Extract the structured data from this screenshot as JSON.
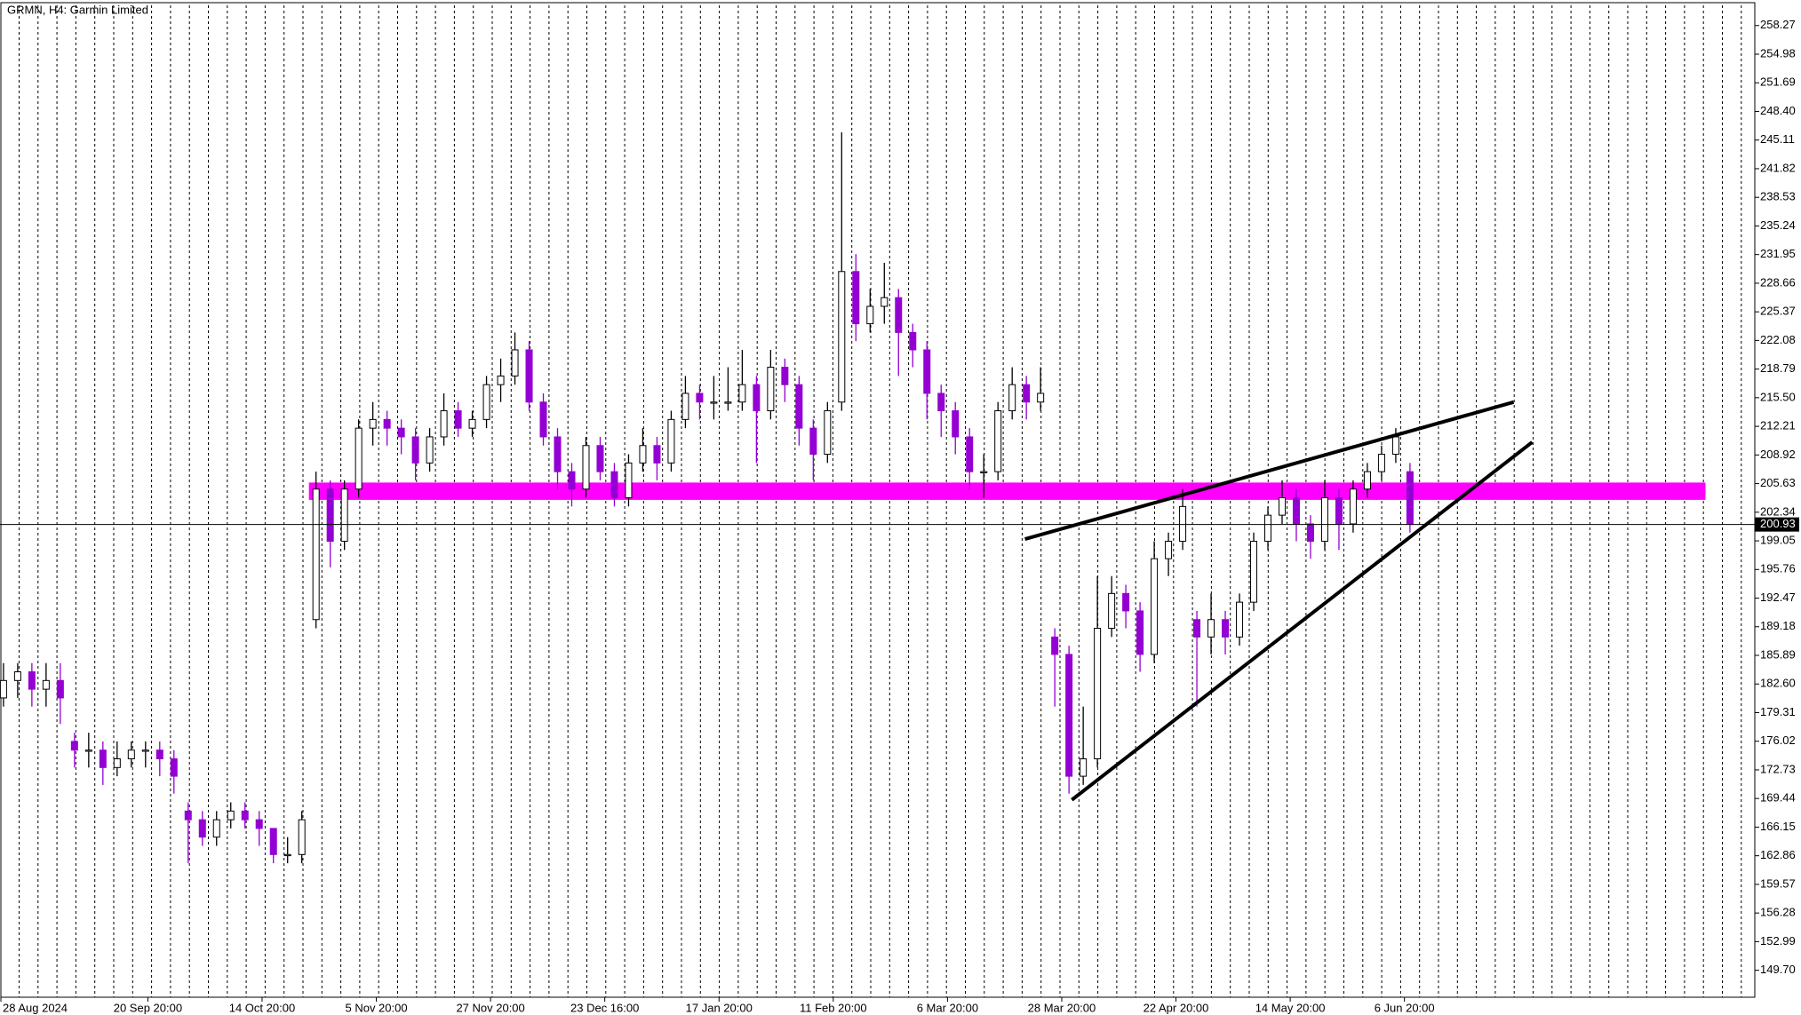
{
  "chart_data": {
    "type": "candlestick",
    "title": "GRMN, H4:  Garmin Limited",
    "ylim": [
      146.6,
      260.9
    ],
    "yticks": [
      258.27,
      254.98,
      251.69,
      {
        "value": 248.4,
        "label": "248.40"
      },
      245.11,
      241.82,
      238.53,
      235.24,
      231.95,
      228.66,
      225.37,
      222.08,
      218.79,
      {
        "value": 215.5,
        "label": "215.50"
      },
      212.21,
      208.92,
      205.63,
      202.34,
      199.05,
      195.76,
      192.47,
      189.18,
      185.89,
      {
        "value": 182.6,
        "label": "182.60"
      },
      179.31,
      176.02,
      172.73,
      169.44,
      166.15,
      162.86,
      159.57,
      156.28,
      152.99,
      {
        "value": 149.7,
        "label": "149.70"
      }
    ],
    "xlabels": [
      "28 Aug 2024",
      "20 Sep 20:00",
      "14 Oct 20:00",
      "5 Nov 20:00",
      "27 Nov 20:00",
      "23 Dec 16:00",
      "17 Jan 20:00",
      "11 Feb 20:00",
      "6 Mar 20:00",
      "28 Mar 20:00",
      "22 Apr 20:00",
      "14 May 20:00",
      "6 Jun 20:00"
    ],
    "bull_color": "#ffffff",
    "bear_color": "#9400d3",
    "candles": [
      [
        181,
        185,
        180,
        183
      ],
      [
        183,
        185,
        181,
        184
      ],
      [
        184,
        185,
        180,
        182
      ],
      [
        182,
        185,
        180,
        183
      ],
      [
        183,
        185,
        178,
        181
      ],
      [
        176,
        177,
        173,
        175
      ],
      [
        175,
        177,
        173,
        175
      ],
      [
        175,
        176,
        171,
        173
      ],
      [
        173,
        176,
        172,
        174
      ],
      [
        174,
        176,
        173,
        175
      ],
      [
        175,
        176,
        173,
        175
      ],
      [
        175,
        176,
        172,
        174
      ],
      [
        174,
        175,
        170,
        172
      ],
      [
        168,
        169,
        162,
        167
      ],
      [
        167,
        168,
        164,
        165
      ],
      [
        165,
        168,
        164,
        167
      ],
      [
        167,
        169,
        166,
        168
      ],
      [
        168,
        169,
        166,
        167
      ],
      [
        167,
        168,
        164,
        166
      ],
      [
        166,
        166,
        162,
        163
      ],
      [
        163,
        165,
        162,
        163
      ],
      [
        163,
        168,
        162,
        167
      ],
      [
        190,
        207,
        189,
        205
      ],
      [
        205,
        206,
        196,
        199
      ],
      [
        199,
        206,
        198,
        205
      ],
      [
        205,
        213,
        204,
        212
      ],
      [
        212,
        215,
        210,
        213
      ],
      [
        213,
        214,
        210,
        212
      ],
      [
        212,
        213,
        209,
        211
      ],
      [
        211,
        212,
        206,
        208
      ],
      [
        208,
        212,
        207,
        211
      ],
      [
        211,
        216,
        210,
        214
      ],
      [
        214,
        215,
        211,
        212
      ],
      [
        212,
        214,
        211,
        213
      ],
      [
        213,
        218,
        212,
        217
      ],
      [
        217,
        220,
        215,
        218
      ],
      [
        218,
        223,
        217,
        221
      ],
      [
        221,
        222,
        214,
        215
      ],
      [
        215,
        216,
        210,
        211
      ],
      [
        211,
        212,
        205,
        207
      ],
      [
        207,
        208,
        203,
        205
      ],
      [
        205,
        211,
        204,
        210
      ],
      [
        210,
        211,
        206,
        207
      ],
      [
        207,
        208,
        203,
        204
      ],
      [
        204,
        209,
        203,
        208
      ],
      [
        208,
        212,
        207,
        210
      ],
      [
        210,
        211,
        206,
        208
      ],
      [
        208,
        214,
        207,
        213
      ],
      [
        213,
        218,
        212,
        216
      ],
      [
        216,
        217,
        213,
        215
      ],
      [
        215,
        218,
        213,
        215
      ],
      [
        215,
        219,
        214,
        215
      ],
      [
        215,
        221,
        214,
        217
      ],
      [
        217,
        218,
        208,
        214
      ],
      [
        214,
        221,
        213,
        219
      ],
      [
        219,
        220,
        215,
        217
      ],
      [
        217,
        218,
        210,
        212
      ],
      [
        212,
        213,
        206,
        209
      ],
      [
        209,
        215,
        208,
        214
      ],
      [
        215,
        246,
        214,
        230
      ],
      [
        230,
        232,
        222,
        224
      ],
      [
        224,
        228,
        223,
        226
      ],
      [
        226,
        231,
        224,
        227
      ],
      [
        227,
        228,
        218,
        223
      ],
      [
        223,
        224,
        219,
        221
      ],
      [
        221,
        222,
        213,
        216
      ],
      [
        216,
        217,
        211,
        214
      ],
      [
        214,
        215,
        209,
        211
      ],
      [
        211,
        212,
        205,
        207
      ],
      [
        207,
        209,
        204,
        207
      ],
      [
        207,
        215,
        206,
        214
      ],
      [
        214,
        219,
        213,
        217
      ],
      [
        217,
        218,
        213,
        215
      ],
      [
        215,
        219,
        214,
        216
      ],
      [
        188,
        189,
        180,
        186
      ],
      [
        186,
        187,
        170,
        172
      ],
      [
        172,
        180,
        171,
        174
      ],
      [
        174,
        195,
        173,
        189
      ],
      [
        189,
        195,
        188,
        193
      ],
      [
        193,
        194,
        189,
        191
      ],
      [
        191,
        192,
        184,
        186
      ],
      [
        186,
        199,
        185,
        197
      ],
      [
        197,
        200,
        195,
        199
      ],
      [
        199,
        205,
        198,
        203
      ],
      [
        190,
        191,
        180,
        188
      ],
      [
        188,
        193,
        186,
        190
      ],
      [
        190,
        191,
        186,
        188
      ],
      [
        188,
        193,
        187,
        192
      ],
      [
        192,
        200,
        191,
        199
      ],
      [
        199,
        203,
        198,
        202
      ],
      [
        202,
        206,
        201,
        204
      ],
      [
        204,
        205,
        199,
        201
      ],
      [
        201,
        202,
        197,
        199
      ],
      [
        199,
        206,
        198,
        204
      ],
      [
        204,
        205,
        198,
        201
      ],
      [
        201,
        206,
        200,
        205
      ],
      [
        205,
        208,
        204,
        207
      ],
      [
        207,
        210,
        206,
        209
      ],
      [
        209,
        212,
        208,
        211
      ],
      [
        207,
        208,
        200,
        201
      ]
    ],
    "zone": {
      "x": [
        21.5,
        119.8
      ],
      "y": [
        203.76,
        205.75
      ],
      "color": "#ff00ff"
    },
    "trendlines": [
      {
        "x": [
          71.9,
          106.3
        ],
        "y": [
          199.25,
          215.0
        ]
      },
      {
        "x": [
          75.2,
          107.6
        ],
        "y": [
          169.28,
          210.39
        ]
      }
    ],
    "current_price": 200.93
  }
}
